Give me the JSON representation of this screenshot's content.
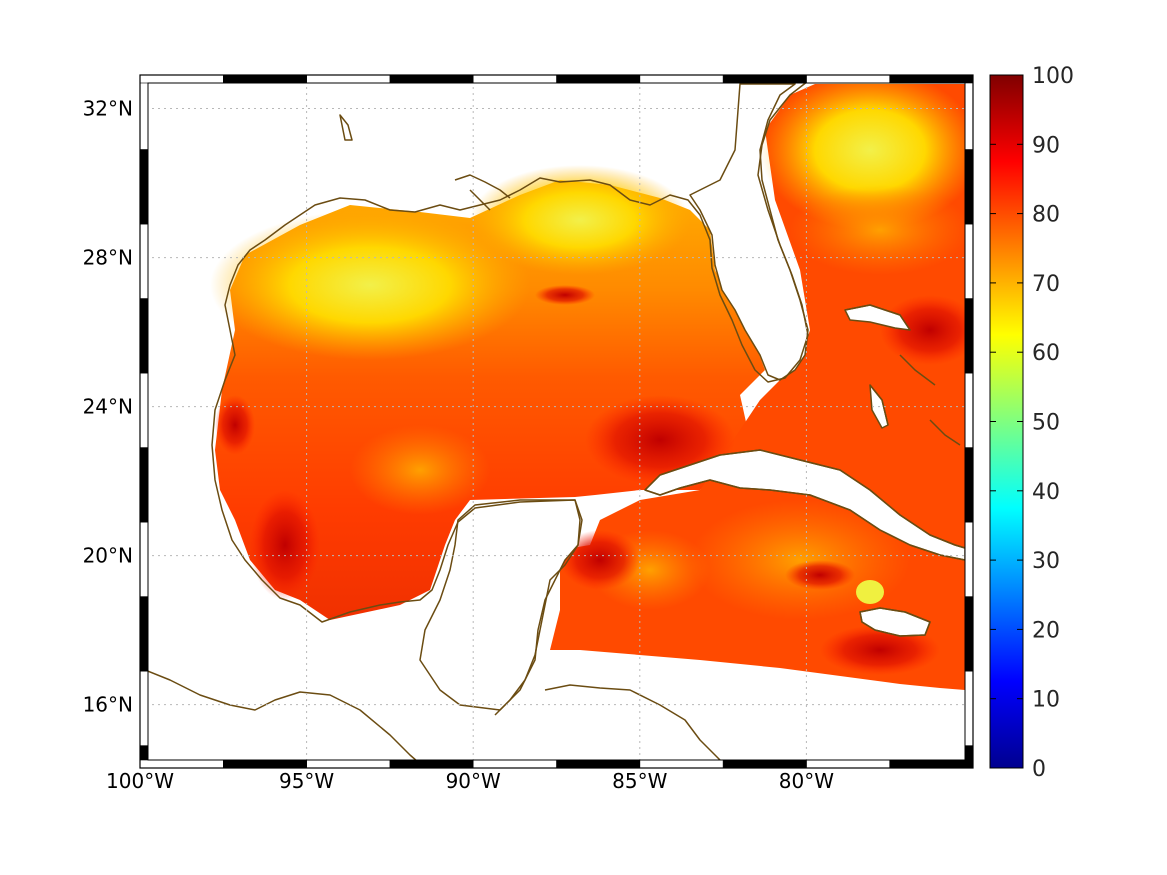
{
  "map": {
    "lon_labels": [
      "100°W",
      "95°W",
      "90°W",
      "85°W",
      "80°W"
    ],
    "lat_labels": [
      "32°N",
      "28°N",
      "24°N",
      "20°N",
      "16°N"
    ],
    "lon_values": [
      -100,
      -95,
      -90,
      -85,
      -80
    ],
    "lat_values": [
      32,
      28,
      24,
      20,
      16
    ],
    "lon_range": [
      -100,
      -75
    ],
    "lat_range": [
      14.3,
      32.9
    ],
    "coastline_color": "#6b4c12"
  },
  "colorbar": {
    "tick_labels": [
      "0",
      "10",
      "20",
      "30",
      "40",
      "50",
      "60",
      "70",
      "80",
      "90",
      "100"
    ],
    "min": 0,
    "max": 100,
    "colormap": "jet"
  }
}
